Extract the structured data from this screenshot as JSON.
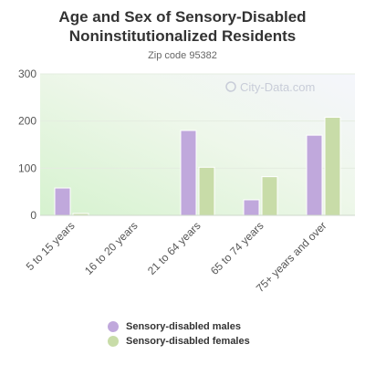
{
  "chart_data": {
    "type": "bar",
    "title": "Age and Sex of Sensory-Disabled Noninstitutionalized Residents",
    "subtitle": "Zip code 95382",
    "categories": [
      "5 to 15 years",
      "16 to 20 years",
      "21 to 64 years",
      "65 to 74 years",
      "75+ years and over"
    ],
    "series": [
      {
        "name": "Sensory-disabled males",
        "color": "#c0a8dc",
        "values": [
          58,
          0,
          180,
          33,
          170
        ]
      },
      {
        "name": "Sensory-disabled females",
        "color": "#c8dca8",
        "values": [
          4,
          0,
          102,
          82,
          208
        ]
      }
    ],
    "ylim": [
      0,
      300
    ],
    "yticks": [
      0,
      100,
      200,
      300
    ],
    "grid": true,
    "legend_position": "bottom",
    "watermark": "City-Data.com"
  }
}
